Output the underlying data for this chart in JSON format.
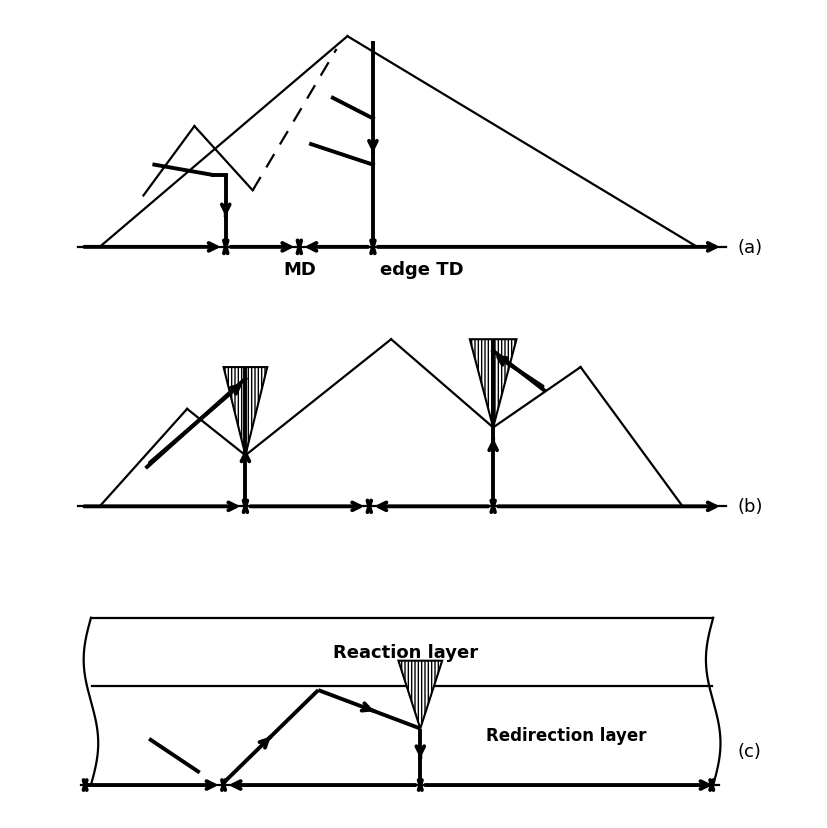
{
  "bg_color": "#ffffff",
  "line_color": "#000000",
  "thick_lw": 2.8,
  "thin_lw": 1.6,
  "label_a": "(a)",
  "label_b": "(b)",
  "label_c": "(c)",
  "text_MD": "MD",
  "text_edgeTD": "edge TD",
  "text_reaction": "Reaction layer",
  "text_redirection": "Redirection layer"
}
